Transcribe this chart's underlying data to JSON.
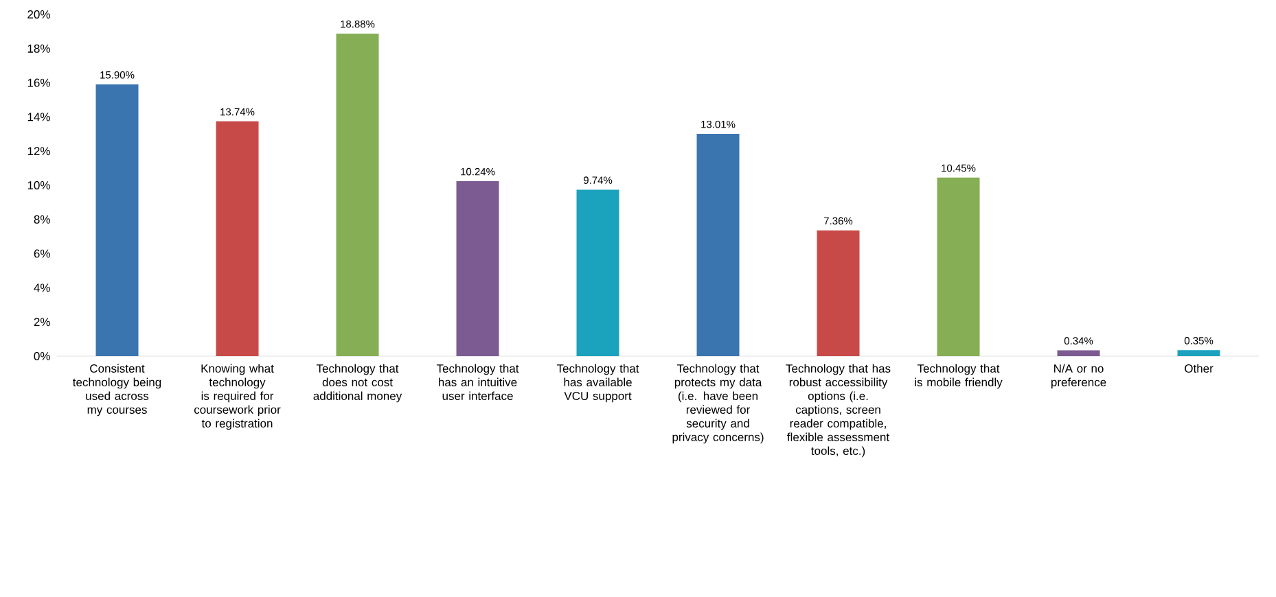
{
  "chart_data": {
    "type": "bar",
    "categories": [
      "Consistent technology being used across my courses",
      "Knowing what technology is required for coursework prior to registration",
      "Technology that does not cost additional money",
      "Technology that has an intuitive user interface",
      "Technology that has available VCU support",
      "Technology that protects my data (i.e. have been reviewed for security and privacy concerns)",
      "Technology that has robust accessibility options (i.e. captions, screen reader compatible, flexible assessment tools, etc.)",
      "Technology that is mobile friendly",
      "N/A or no preference",
      "Other"
    ],
    "values": [
      15.9,
      13.74,
      18.88,
      10.24,
      9.74,
      13.01,
      7.36,
      10.45,
      0.34,
      0.35
    ],
    "value_labels": [
      "15.90%",
      "13.74%",
      "18.88%",
      "10.24%",
      "9.74%",
      "13.01%",
      "7.36%",
      "10.45%",
      "0.34%",
      "0.35%"
    ],
    "colors": [
      "#3a75b0",
      "#c84a48",
      "#86ae55",
      "#7b5b92",
      "#1ba2bd",
      "#3a75b0",
      "#c84a48",
      "#86ae55",
      "#7b5b92",
      "#1ba2bd"
    ],
    "ylim": [
      0,
      20
    ],
    "yticks": [
      {
        "value": 0,
        "label": "0%"
      },
      {
        "value": 2,
        "label": "2%"
      },
      {
        "value": 4,
        "label": "4%"
      },
      {
        "value": 6,
        "label": "6%"
      },
      {
        "value": 8,
        "label": "8%"
      },
      {
        "value": 10,
        "label": "10%"
      },
      {
        "value": 12,
        "label": "12%"
      },
      {
        "value": 14,
        "label": "14%"
      },
      {
        "value": 16,
        "label": "16%"
      },
      {
        "value": 18,
        "label": "18%"
      },
      {
        "value": 20,
        "label": "20%"
      }
    ]
  }
}
